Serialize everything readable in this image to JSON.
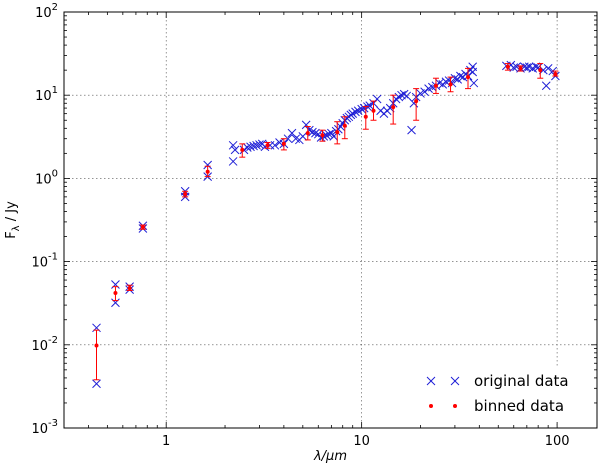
{
  "chart_data": {
    "type": "scatter",
    "xlabel": "λ/μm",
    "ylabel": "F_λ / Jy",
    "xscale": "log",
    "yscale": "log",
    "xlim": [
      0.3,
      160
    ],
    "ylim": [
      0.001,
      100
    ],
    "xticks": [
      {
        "value": 1,
        "label": "1"
      },
      {
        "value": 10,
        "label": "10"
      },
      {
        "value": 100,
        "label": "100"
      }
    ],
    "yticks": [
      {
        "value": 0.001,
        "base": "10",
        "exp": "-3"
      },
      {
        "value": 0.01,
        "base": "10",
        "exp": "-2"
      },
      {
        "value": 0.1,
        "base": "10",
        "exp": "-1"
      },
      {
        "value": 1,
        "base": "10",
        "exp": "0"
      },
      {
        "value": 10,
        "base": "10",
        "exp": "1"
      },
      {
        "value": 100,
        "base": "10",
        "exp": "2"
      }
    ],
    "grid": true,
    "legend_position": "lower-right",
    "series": [
      {
        "name": "original data",
        "marker": "x",
        "color": "#1f1fd6",
        "points": [
          [
            0.44,
            0.016
          ],
          [
            0.44,
            0.0034
          ],
          [
            0.55,
            0.053
          ],
          [
            0.55,
            0.032
          ],
          [
            0.65,
            0.05
          ],
          [
            0.65,
            0.046
          ],
          [
            0.76,
            0.27
          ],
          [
            0.76,
            0.25
          ],
          [
            1.25,
            0.7
          ],
          [
            1.25,
            0.6
          ],
          [
            1.63,
            1.45
          ],
          [
            1.63,
            1.05
          ],
          [
            2.2,
            2.5
          ],
          [
            2.2,
            1.6
          ],
          [
            2.25,
            2.2
          ],
          [
            2.5,
            2.2
          ],
          [
            2.6,
            2.35
          ],
          [
            2.7,
            2.4
          ],
          [
            2.8,
            2.45
          ],
          [
            2.9,
            2.5
          ],
          [
            3.0,
            2.55
          ],
          [
            3.1,
            2.6
          ],
          [
            3.2,
            2.4
          ],
          [
            3.4,
            2.5
          ],
          [
            3.6,
            2.5
          ],
          [
            3.8,
            2.7
          ],
          [
            4.0,
            2.6
          ],
          [
            4.2,
            3.0
          ],
          [
            4.4,
            3.5
          ],
          [
            4.6,
            3.0
          ],
          [
            4.8,
            2.9
          ],
          [
            5.0,
            3.2
          ],
          [
            5.2,
            4.4
          ],
          [
            5.4,
            3.8
          ],
          [
            5.6,
            3.6
          ],
          [
            5.8,
            3.5
          ],
          [
            6.0,
            3.4
          ],
          [
            6.2,
            3.1
          ],
          [
            6.4,
            3.2
          ],
          [
            6.6,
            3.3
          ],
          [
            6.8,
            3.4
          ],
          [
            7.0,
            3.5
          ],
          [
            7.2,
            3.2
          ],
          [
            7.4,
            3.7
          ],
          [
            7.6,
            3.9
          ],
          [
            7.8,
            4.2
          ],
          [
            8.0,
            4.6
          ],
          [
            8.2,
            5.0
          ],
          [
            8.4,
            5.3
          ],
          [
            8.6,
            5.5
          ],
          [
            8.8,
            5.8
          ],
          [
            9.0,
            6.0
          ],
          [
            9.3,
            6.3
          ],
          [
            9.6,
            6.5
          ],
          [
            10.0,
            6.8
          ],
          [
            10.3,
            7.0
          ],
          [
            10.7,
            7.3
          ],
          [
            11.0,
            7.5
          ],
          [
            11.5,
            8.0
          ],
          [
            12.0,
            9.0
          ],
          [
            12.5,
            6.5
          ],
          [
            13.0,
            6.0
          ],
          [
            13.5,
            6.5
          ],
          [
            14.0,
            7.0
          ],
          [
            14.5,
            8.0
          ],
          [
            15.0,
            9.0
          ],
          [
            15.5,
            9.5
          ],
          [
            16.0,
            10.0
          ],
          [
            16.5,
            10.3
          ],
          [
            17.0,
            9.8
          ],
          [
            18.0,
            3.8
          ],
          [
            18.5,
            8.0
          ],
          [
            19.0,
            9.5
          ],
          [
            20.0,
            10.5
          ],
          [
            21.0,
            11.0
          ],
          [
            22.0,
            12.0
          ],
          [
            23.0,
            12.5
          ],
          [
            24.0,
            13.0
          ],
          [
            25.0,
            14.0
          ],
          [
            26.0,
            13.5
          ],
          [
            27.0,
            14.5
          ],
          [
            28.0,
            15.0
          ],
          [
            29.0,
            14.0
          ],
          [
            30.0,
            16.0
          ],
          [
            31.0,
            15.5
          ],
          [
            32.0,
            17.0
          ],
          [
            33.0,
            16.5
          ],
          [
            34.0,
            18.0
          ],
          [
            35.0,
            17.0
          ],
          [
            36.0,
            20.0
          ],
          [
            37.0,
            22.0
          ],
          [
            37.5,
            14.0
          ],
          [
            37.0,
            19.0
          ],
          [
            55.0,
            22.5
          ],
          [
            58.0,
            23.0
          ],
          [
            60.0,
            21.5
          ],
          [
            62.0,
            22.0
          ],
          [
            65.0,
            21.0
          ],
          [
            68.0,
            22.0
          ],
          [
            70.0,
            21.5
          ],
          [
            72.0,
            22.0
          ],
          [
            75.0,
            21.0
          ],
          [
            78.0,
            22.0
          ],
          [
            80.0,
            21.5
          ],
          [
            85.0,
            20.0
          ],
          [
            88.0,
            13.0
          ],
          [
            90.0,
            21.0
          ],
          [
            95.0,
            19.5
          ],
          [
            98.0,
            17.0
          ]
        ]
      },
      {
        "name": "binned data",
        "marker": "dot",
        "color": "#ff0000",
        "points": [
          {
            "x": 0.44,
            "y": 0.0098,
            "ylo": 0.0038,
            "yhi": 0.015
          },
          {
            "x": 0.55,
            "y": 0.042,
            "ylo": 0.034,
            "yhi": 0.05
          },
          {
            "x": 0.65,
            "y": 0.048,
            "ylo": 0.045,
            "yhi": 0.052
          },
          {
            "x": 0.76,
            "y": 0.26,
            "ylo": 0.245,
            "yhi": 0.275
          },
          {
            "x": 1.25,
            "y": 0.65,
            "ylo": 0.6,
            "yhi": 0.7
          },
          {
            "x": 1.63,
            "y": 1.2,
            "ylo": 1.05,
            "yhi": 1.4
          },
          {
            "x": 2.45,
            "y": 2.2,
            "ylo": 1.8,
            "yhi": 2.6
          },
          {
            "x": 3.3,
            "y": 2.5,
            "ylo": 2.3,
            "yhi": 2.7
          },
          {
            "x": 4.0,
            "y": 2.6,
            "ylo": 2.2,
            "yhi": 3.0
          },
          {
            "x": 5.3,
            "y": 3.5,
            "ylo": 2.9,
            "yhi": 4.2
          },
          {
            "x": 6.3,
            "y": 3.3,
            "ylo": 2.8,
            "yhi": 3.8
          },
          {
            "x": 7.5,
            "y": 3.6,
            "ylo": 2.6,
            "yhi": 4.8
          },
          {
            "x": 8.2,
            "y": 4.3,
            "ylo": 3.0,
            "yhi": 5.5
          },
          {
            "x": 10.5,
            "y": 5.5,
            "ylo": 3.9,
            "yhi": 7.3
          },
          {
            "x": 11.5,
            "y": 6.5,
            "ylo": 5.0,
            "yhi": 8.5
          },
          {
            "x": 14.5,
            "y": 7.2,
            "ylo": 4.5,
            "yhi": 10.0
          },
          {
            "x": 19.0,
            "y": 8.5,
            "ylo": 5.0,
            "yhi": 12.0
          },
          {
            "x": 24.0,
            "y": 13.0,
            "ylo": 10.5,
            "yhi": 16.0
          },
          {
            "x": 28.5,
            "y": 13.5,
            "ylo": 11.0,
            "yhi": 16.5
          },
          {
            "x": 35.0,
            "y": 16.5,
            "ylo": 12.0,
            "yhi": 21.0
          },
          {
            "x": 56.0,
            "y": 22.0,
            "ylo": 20.0,
            "yhi": 24.0
          },
          {
            "x": 65.0,
            "y": 21.0,
            "ylo": 19.5,
            "yhi": 22.5
          },
          {
            "x": 82.0,
            "y": 20.0,
            "ylo": 16.0,
            "yhi": 24.0
          },
          {
            "x": 98.0,
            "y": 18.0,
            "ylo": 17.0,
            "yhi": 19.5
          }
        ]
      }
    ]
  }
}
